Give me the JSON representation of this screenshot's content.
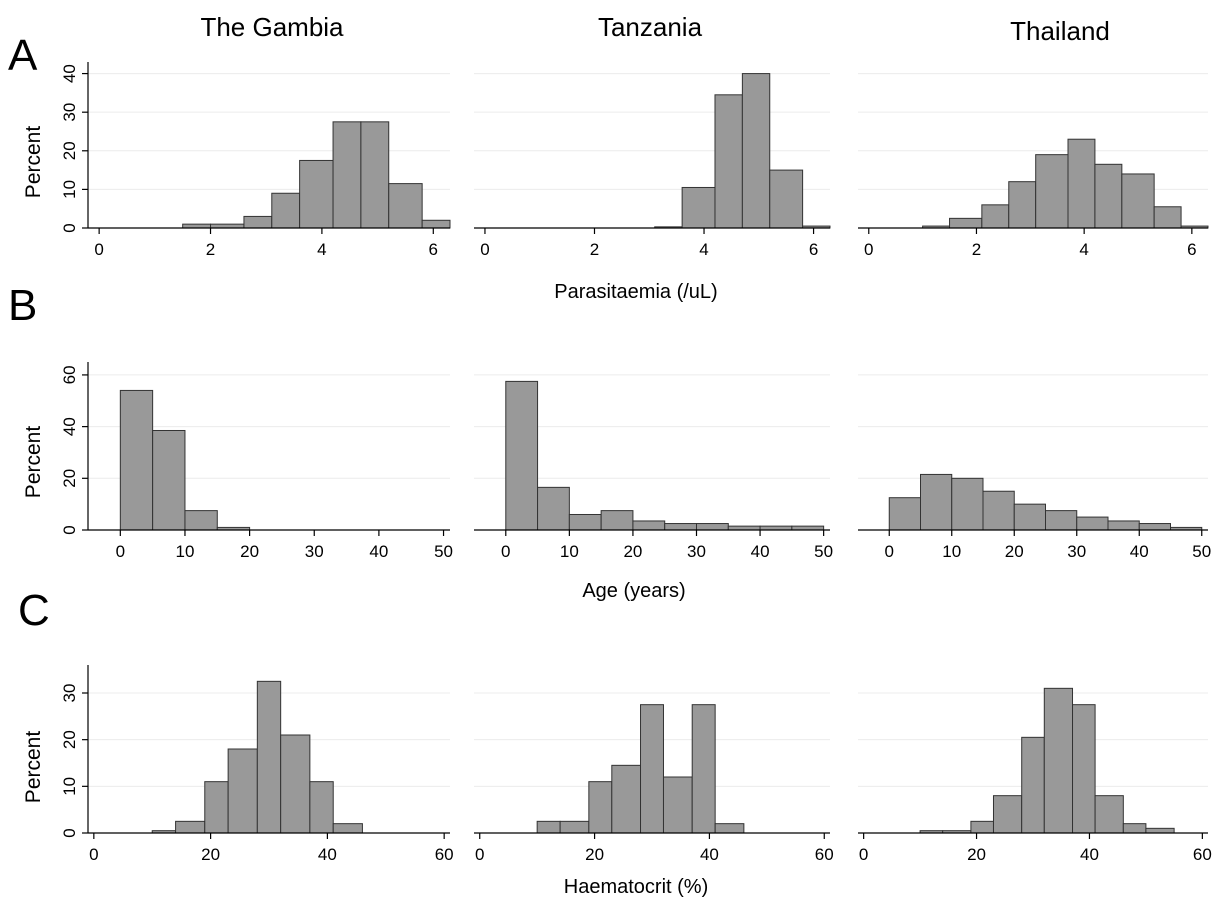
{
  "columns": [
    "The Gambia",
    "Tanzania",
    "Thailand"
  ],
  "panel_letters": [
    "A",
    "B",
    "C"
  ],
  "ylabel": "Percent",
  "xlabels": [
    "Parasitaemia (/uL)",
    "Age (years)",
    "Haematocrit (%)"
  ],
  "chart_data": [
    {
      "type": "bar",
      "row": "A",
      "column": "The Gambia",
      "xlabel": "",
      "ylabel": "Percent",
      "xlim": [
        -0.2,
        6.3
      ],
      "ylim": [
        0,
        43
      ],
      "xticks": [
        0,
        2,
        4,
        6
      ],
      "yticks": [
        0,
        10,
        20,
        30,
        40
      ],
      "grid": true,
      "bins": [
        [
          1.5,
          2.0,
          1
        ],
        [
          2.0,
          2.6,
          1
        ],
        [
          2.6,
          3.1,
          3
        ],
        [
          3.1,
          3.6,
          9
        ],
        [
          3.6,
          4.2,
          17.5
        ],
        [
          4.2,
          4.7,
          27.5
        ],
        [
          4.7,
          5.2,
          27.5
        ],
        [
          5.2,
          5.8,
          11.5
        ],
        [
          5.8,
          6.3,
          2
        ]
      ]
    },
    {
      "type": "bar",
      "row": "A",
      "column": "Tanzania",
      "xlabel": "",
      "ylabel": "",
      "xlim": [
        -0.2,
        6.3
      ],
      "ylim": [
        0,
        43
      ],
      "xticks": [
        0,
        2,
        4,
        6
      ],
      "yticks": [
        0,
        10,
        20,
        30,
        40
      ],
      "grid": true,
      "bins": [
        [
          3.1,
          3.6,
          0.3
        ],
        [
          3.6,
          4.2,
          10.5
        ],
        [
          4.2,
          4.7,
          34.5
        ],
        [
          4.7,
          5.2,
          40
        ],
        [
          5.2,
          5.8,
          15
        ],
        [
          5.8,
          6.3,
          0.5
        ]
      ]
    },
    {
      "type": "bar",
      "row": "A",
      "column": "Thailand",
      "xlabel": "",
      "ylabel": "",
      "xlim": [
        -0.2,
        6.3
      ],
      "ylim": [
        0,
        43
      ],
      "xticks": [
        0,
        2,
        4,
        6
      ],
      "yticks": [
        0,
        10,
        20,
        30,
        40
      ],
      "grid": true,
      "bins": [
        [
          1.0,
          1.5,
          0.5
        ],
        [
          1.5,
          2.1,
          2.5
        ],
        [
          2.1,
          2.6,
          6
        ],
        [
          2.6,
          3.1,
          12
        ],
        [
          3.1,
          3.7,
          19
        ],
        [
          3.7,
          4.2,
          23
        ],
        [
          4.2,
          4.7,
          16.5
        ],
        [
          4.7,
          5.3,
          14
        ],
        [
          5.3,
          5.8,
          5.5
        ],
        [
          5.8,
          6.3,
          0.5
        ]
      ]
    },
    {
      "type": "bar",
      "row": "B",
      "column": "The Gambia",
      "xlabel": "",
      "ylabel": "Percent",
      "xlim": [
        -5,
        51
      ],
      "ylim": [
        0,
        65
      ],
      "xticks": [
        0,
        10,
        20,
        30,
        40,
        50
      ],
      "yticks": [
        0,
        20,
        40,
        60
      ],
      "grid": true,
      "bins": [
        [
          0,
          5,
          54
        ],
        [
          5,
          10,
          38.5
        ],
        [
          10,
          15,
          7.5
        ],
        [
          15,
          20,
          1
        ]
      ]
    },
    {
      "type": "bar",
      "row": "B",
      "column": "Tanzania",
      "xlabel": "",
      "ylabel": "",
      "xlim": [
        -5,
        51
      ],
      "ylim": [
        0,
        65
      ],
      "xticks": [
        0,
        10,
        20,
        30,
        40,
        50
      ],
      "yticks": [
        0,
        20,
        40,
        60
      ],
      "grid": true,
      "bins": [
        [
          0,
          5,
          57.5
        ],
        [
          5,
          10,
          16.5
        ],
        [
          10,
          15,
          6
        ],
        [
          15,
          20,
          7.5
        ],
        [
          20,
          25,
          3.5
        ],
        [
          25,
          30,
          2.5
        ],
        [
          30,
          35,
          2.5
        ],
        [
          35,
          40,
          1.5
        ],
        [
          40,
          45,
          1.5
        ],
        [
          45,
          50,
          1.5
        ]
      ]
    },
    {
      "type": "bar",
      "row": "B",
      "column": "Thailand",
      "xlabel": "",
      "ylabel": "",
      "xlim": [
        -5,
        51
      ],
      "ylim": [
        0,
        65
      ],
      "xticks": [
        0,
        10,
        20,
        30,
        40,
        50
      ],
      "yticks": [
        0,
        20,
        40,
        60
      ],
      "grid": true,
      "bins": [
        [
          0,
          5,
          12.5
        ],
        [
          5,
          10,
          21.5
        ],
        [
          10,
          15,
          20
        ],
        [
          15,
          20,
          15
        ],
        [
          20,
          25,
          10
        ],
        [
          25,
          30,
          7.5
        ],
        [
          30,
          35,
          5
        ],
        [
          35,
          40,
          3.5
        ],
        [
          40,
          45,
          2.5
        ],
        [
          45,
          50,
          1
        ]
      ]
    },
    {
      "type": "bar",
      "row": "C",
      "column": "The Gambia",
      "xlabel": "",
      "ylabel": "Percent",
      "xlim": [
        -1,
        61
      ],
      "ylim": [
        0,
        36
      ],
      "xticks": [
        0,
        20,
        40,
        60
      ],
      "yticks": [
        0,
        10,
        20,
        30
      ],
      "grid": true,
      "bins": [
        [
          10,
          14,
          0.5
        ],
        [
          14,
          19,
          2.5
        ],
        [
          19,
          23,
          11
        ],
        [
          23,
          28,
          18
        ],
        [
          28,
          32,
          32.5
        ],
        [
          32,
          37,
          21
        ],
        [
          37,
          41,
          11
        ],
        [
          41,
          46,
          2
        ]
      ]
    },
    {
      "type": "bar",
      "row": "C",
      "column": "Tanzania",
      "xlabel": "",
      "ylabel": "",
      "xlim": [
        -1,
        61
      ],
      "ylim": [
        0,
        36
      ],
      "xticks": [
        0,
        20,
        40,
        60
      ],
      "yticks": [
        0,
        10,
        20,
        30
      ],
      "grid": true,
      "bins": [
        [
          10,
          14,
          2.5
        ],
        [
          14,
          19,
          2.5
        ],
        [
          19,
          23,
          11
        ],
        [
          23,
          28,
          14.5
        ],
        [
          28,
          32,
          27.5
        ],
        [
          32,
          37,
          12
        ],
        [
          37,
          41,
          27.5
        ],
        [
          41,
          46,
          2
        ]
      ]
    },
    {
      "type": "bar",
      "row": "C",
      "column": "Thailand",
      "xlabel": "",
      "ylabel": "",
      "xlim": [
        -1,
        61
      ],
      "ylim": [
        0,
        36
      ],
      "xticks": [
        0,
        20,
        40,
        60
      ],
      "yticks": [
        0,
        10,
        20,
        30
      ],
      "grid": true,
      "bins": [
        [
          10,
          14,
          0.5
        ],
        [
          14,
          19,
          0.5
        ],
        [
          19,
          23,
          2.5
        ],
        [
          23,
          28,
          8
        ],
        [
          28,
          32,
          20.5
        ],
        [
          32,
          37,
          31
        ],
        [
          37,
          41,
          27.5
        ],
        [
          41,
          46,
          8
        ],
        [
          46,
          50,
          2
        ],
        [
          50,
          55,
          1
        ]
      ]
    }
  ],
  "colors": {
    "bar_fill": "#999999",
    "bar_stroke": "#333333",
    "grid": "#ececec",
    "axis": "#000000"
  }
}
